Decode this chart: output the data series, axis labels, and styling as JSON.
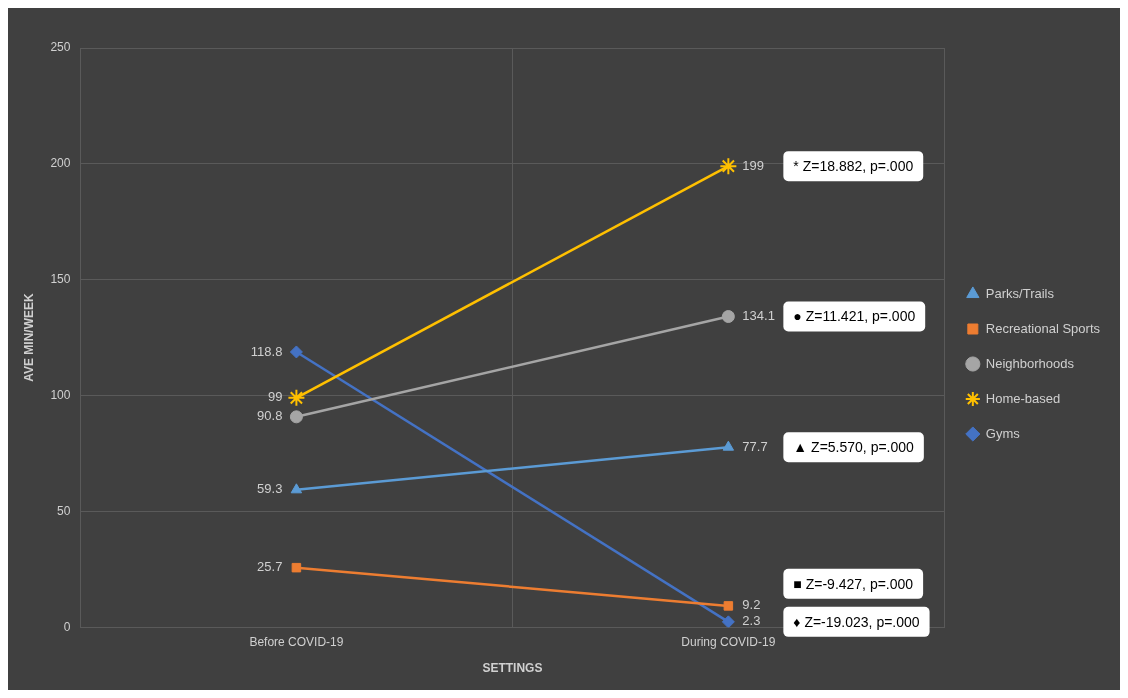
{
  "chart_data": {
    "type": "line",
    "xlabel": "SETTINGS",
    "ylabel": "AVE MIN/WEEK",
    "categories": [
      "Before COVID-19",
      "During COVID-19"
    ],
    "ylim": [
      0,
      250
    ],
    "yticks": [
      0,
      50,
      100,
      150,
      200,
      250
    ],
    "grid": true,
    "legend": "right",
    "data_labels": true,
    "series": [
      {
        "name": "Parks/Trails",
        "color": "#5b9bd5",
        "marker": "triangle",
        "values": [
          59.3,
          77.7
        ]
      },
      {
        "name": "Recreational Sports",
        "color": "#ed7d31",
        "marker": "square",
        "values": [
          25.7,
          9.2
        ]
      },
      {
        "name": "Neighborhoods",
        "color": "#a5a5a5",
        "marker": "circle",
        "values": [
          90.8,
          134.1
        ]
      },
      {
        "name": "Home-based",
        "color": "#ffc000",
        "marker": "cross",
        "values": [
          99,
          199
        ]
      },
      {
        "name": "Gyms",
        "color": "#4472c4",
        "marker": "diamond",
        "values": [
          118.8,
          2.3
        ]
      }
    ],
    "annotations": [
      "* Z=18.882, p=.000",
      "● Z=11.421, p=.000",
      "▲ Z=5.570, p=.000",
      "■ Z=-9.427, p=.000",
      "♦ Z=-19.023, p=.000"
    ]
  }
}
